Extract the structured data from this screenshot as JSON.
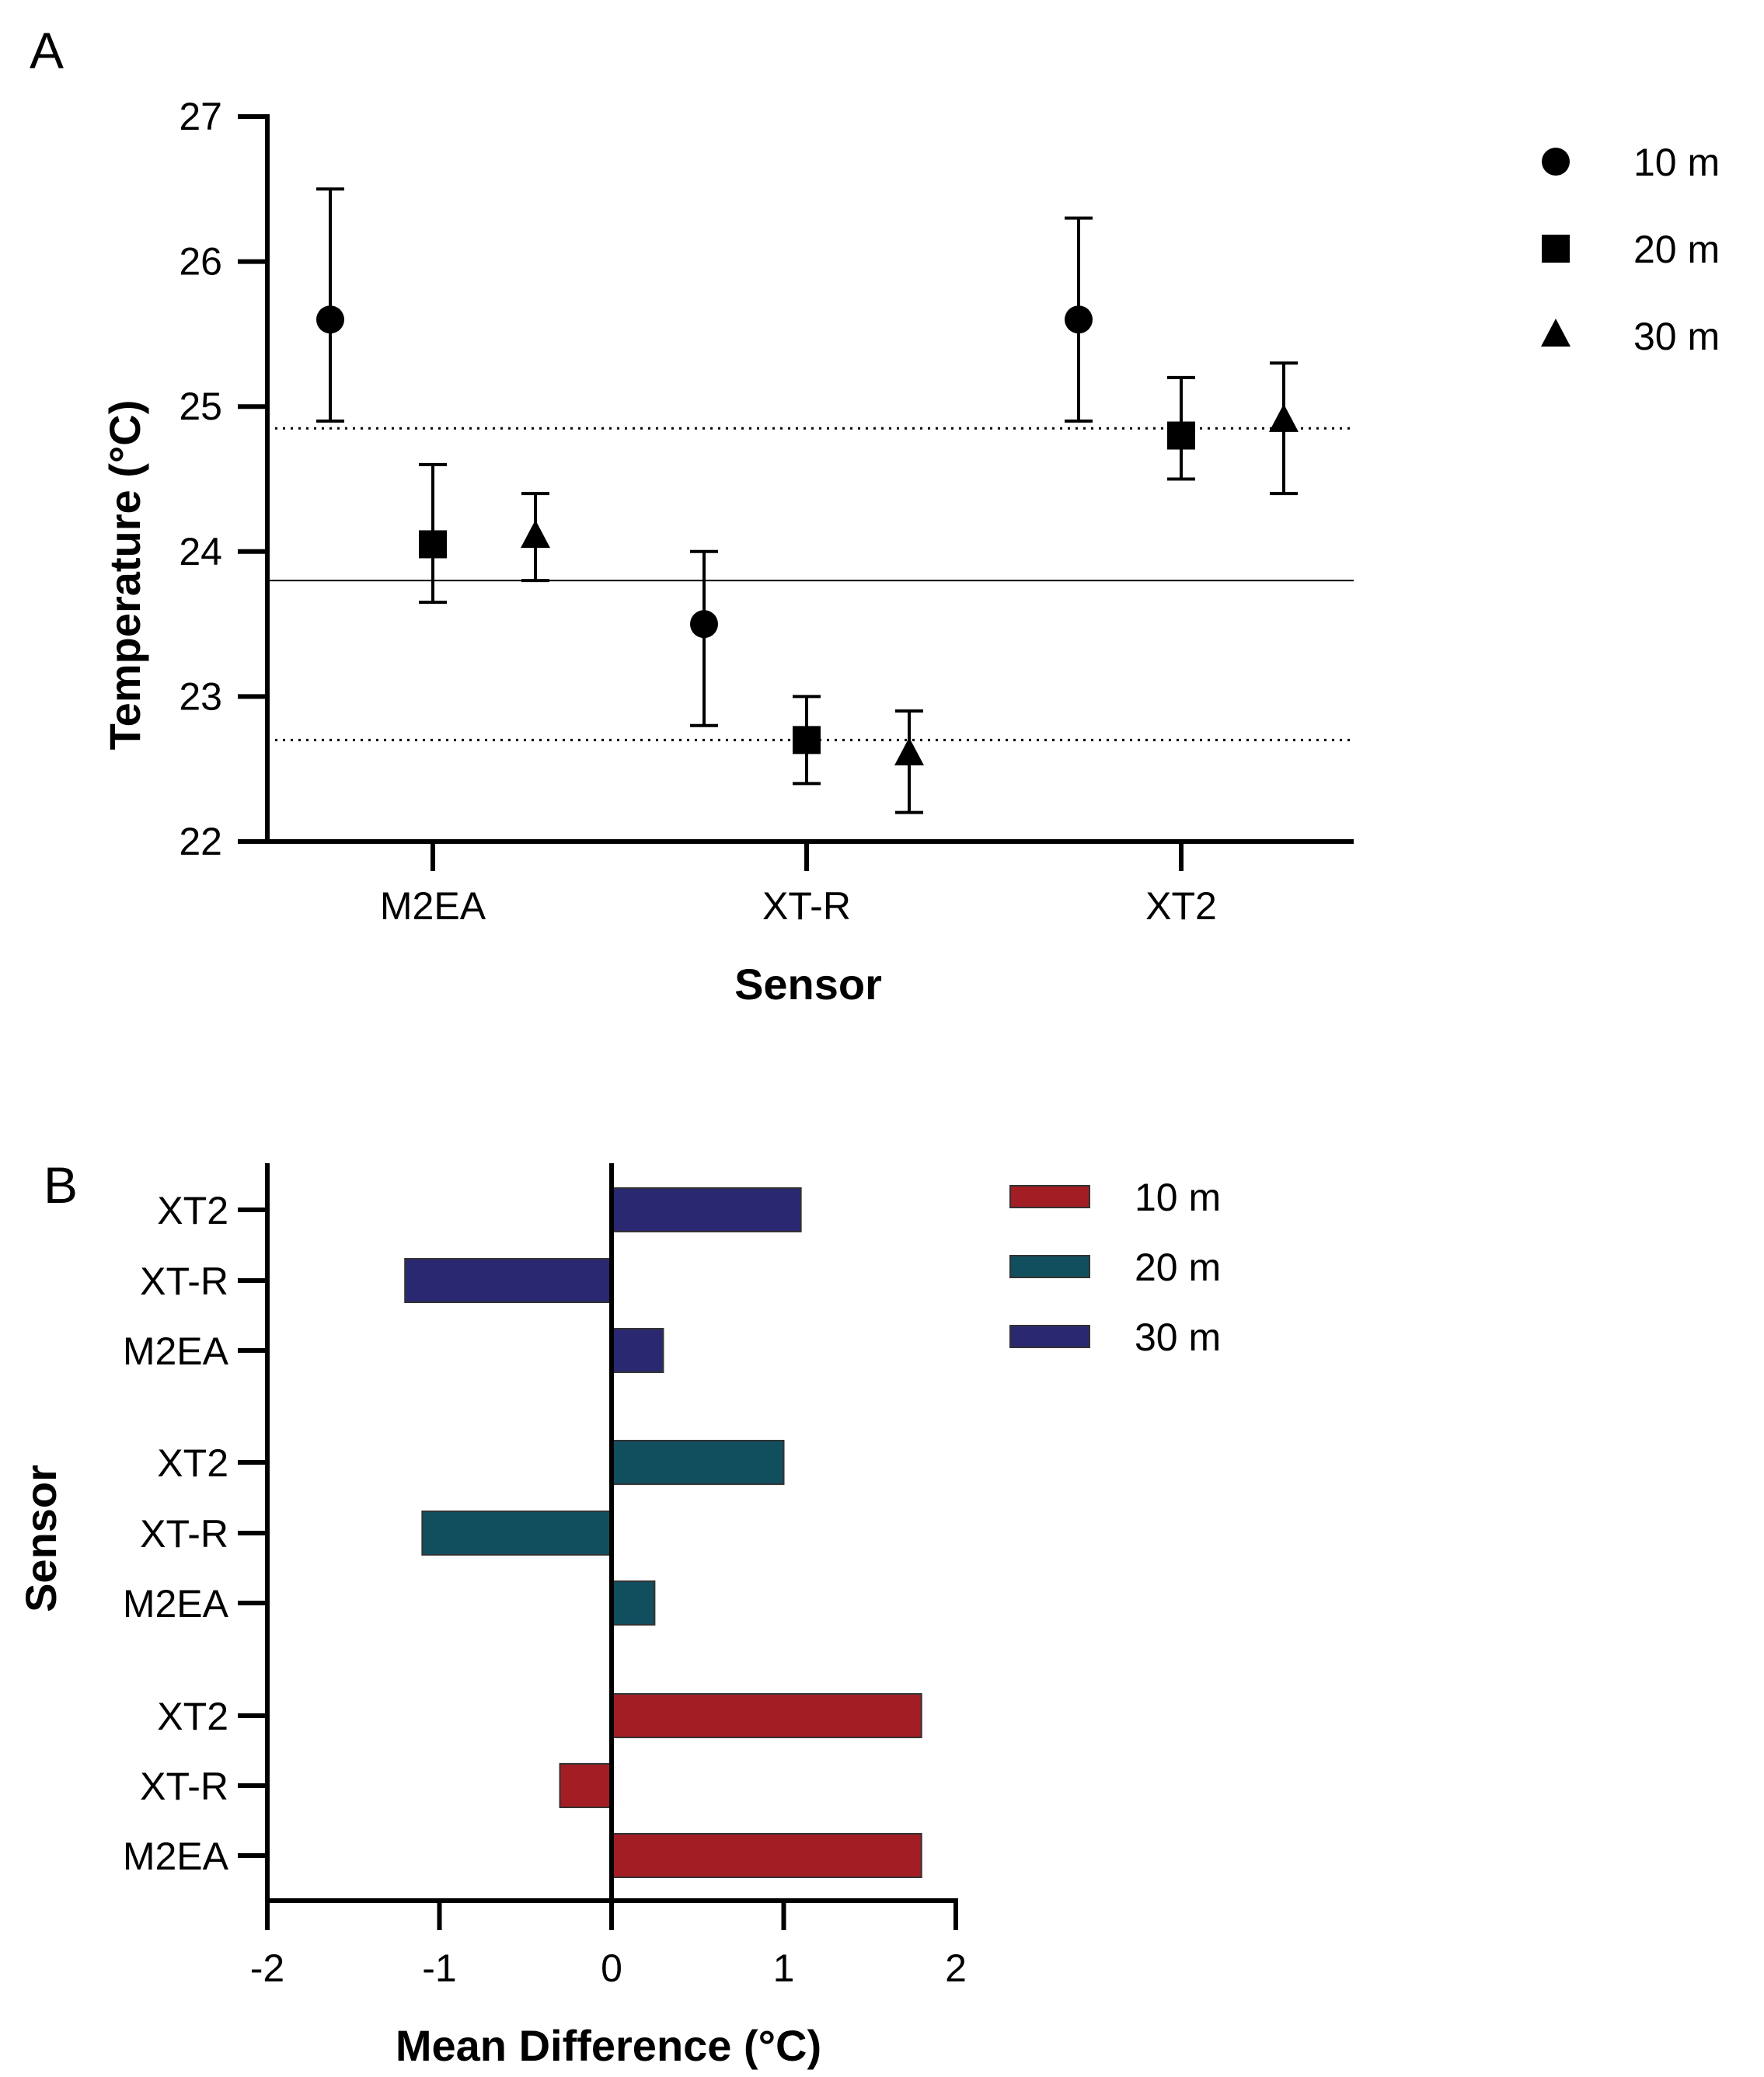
{
  "chart_data": [
    {
      "panel_label": "A",
      "type": "scatter",
      "xlabel": "Sensor",
      "ylabel": "Temperature (°C)",
      "ylim": [
        22,
        27
      ],
      "yticks": [
        "22",
        "23",
        "24",
        "25",
        "26",
        "27"
      ],
      "categories": [
        "M2EA",
        "XT-R",
        "XT2"
      ],
      "legend": [
        "10 m",
        "20 m",
        "30 m"
      ],
      "reference_lines": [
        {
          "value": 24.85,
          "style": "dotted"
        },
        {
          "value": 23.8,
          "style": "solid"
        },
        {
          "value": 22.7,
          "style": "dotted"
        }
      ],
      "series": [
        {
          "name": "10 m",
          "marker": "circle",
          "values": [
            25.6,
            23.5,
            25.6
          ],
          "err_low": [
            24.9,
            22.8,
            24.9
          ],
          "err_high": [
            26.5,
            24.0,
            26.3
          ]
        },
        {
          "name": "20 m",
          "marker": "square",
          "values": [
            24.05,
            22.7,
            24.8
          ],
          "err_low": [
            23.65,
            22.4,
            24.5
          ],
          "err_high": [
            24.6,
            23.0,
            25.2
          ]
        },
        {
          "name": "30 m",
          "marker": "triangle",
          "values": [
            24.1,
            22.6,
            24.9
          ],
          "err_low": [
            23.8,
            22.2,
            24.4
          ],
          "err_high": [
            24.4,
            22.9,
            25.3
          ]
        }
      ]
    },
    {
      "panel_label": "B",
      "type": "bar",
      "orientation": "horizontal",
      "xlabel": "Mean Difference (°C)",
      "ylabel": "Sensor",
      "xlim": [
        -2,
        2
      ],
      "xticks": [
        "-2",
        "-1",
        "0",
        "1",
        "2"
      ],
      "legend": [
        "10 m",
        "20 m",
        "30 m"
      ],
      "colors": {
        "10 m": "#a31d24",
        "20 m": "#114f5e",
        "30 m": "#2a2870"
      },
      "groups": [
        {
          "name": "30 m",
          "categories": [
            "XT2",
            "XT-R",
            "M2EA"
          ],
          "values": [
            1.1,
            -1.2,
            0.3
          ]
        },
        {
          "name": "20 m",
          "categories": [
            "XT2",
            "XT-R",
            "M2EA"
          ],
          "values": [
            1.0,
            -1.1,
            0.25
          ]
        },
        {
          "name": "10 m",
          "categories": [
            "XT2",
            "XT-R",
            "M2EA"
          ],
          "values": [
            1.8,
            -0.3,
            1.8
          ]
        }
      ]
    }
  ]
}
